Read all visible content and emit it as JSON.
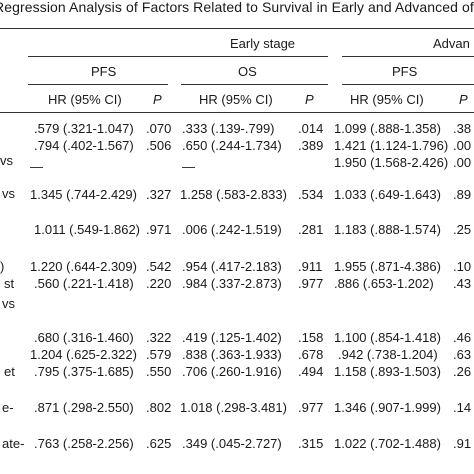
{
  "caption": "Regression Analysis of Factors Related to Survival in Early and Advanced of all EO",
  "headers": {
    "early_stage": "Early stage",
    "advanced": "Advan",
    "pfs": "PFS",
    "os": "OS",
    "pfs2": "PFS",
    "hr": "HR (95% CI)",
    "p": "P"
  },
  "rows": [
    {
      "label": "",
      "hr1": ".579 (.321-1.047)",
      "p1": ".070",
      "hr2": ".333 (.139-.799)",
      "p2": ".014",
      "hr3": "1.099 (.888-1.358)",
      "p3": ".38"
    },
    {
      "label": "",
      "hr1": ".794 (.402-1.567)",
      "p1": ".506",
      "hr2": ".650 (.244-1.734)",
      "p2": ".389",
      "hr3": "1.421 (1.124-1.796)",
      "p3": ".00"
    },
    {
      "label": "vs",
      "hr1": "—",
      "p1": "",
      "hr2": "—",
      "p2": "",
      "hr3": "1.950 (1.568-2.426)",
      "p3": ".00"
    },
    {
      "label": "vs",
      "hr1": "1.345 (.744-2.429)",
      "p1": ".327",
      "hr2": "1.258 (.583-2.833)",
      "p2": ".534",
      "hr3": "1.033 (.649-1.643)",
      "p3": ".89"
    },
    {
      "label": "",
      "hr1": "1.011 (.549-1.862)",
      "p1": ".971",
      "hr2": ".006 (.242-1.519)",
      "p2": ".281",
      "hr3": "1.183 (.888-1.574)",
      "p3": ".25"
    },
    {
      "label": ")",
      "hr1": "1.220 (.644-2.309)",
      "p1": ".542",
      "hr2": ".954 (.417-2.183)",
      "p2": ".911",
      "hr3": "1.955 (.871-4.386)",
      "p3": ".10"
    },
    {
      "label": "st",
      "hr1": ".560 (.221-1.418)",
      "p1": ".220",
      "hr2": ".984 (.337-2.873)",
      "p2": ".977",
      "hr3": ".886 (.653-1.202)",
      "p3": ".43"
    },
    {
      "label": "vs",
      "hr1": "",
      "p1": "",
      "hr2": "",
      "p2": "",
      "hr3": "",
      "p3": ""
    },
    {
      "label": "",
      "hr1": ".680 (.316-1.460)",
      "p1": ".322",
      "hr2": ".419 (.125-1.402)",
      "p2": ".158",
      "hr3": "1.100 (.854-1.418)",
      "p3": ".46"
    },
    {
      "label": "",
      "hr1": "1.204 (.625-2.322)",
      "p1": ".579",
      "hr2": ".838 (.363-1.933)",
      "p2": ".678",
      "hr3": ".942 (.738-1.204)",
      "p3": ".63"
    },
    {
      "label": "et",
      "hr1": ".795 (.375-1.685)",
      "p1": ".550",
      "hr2": ".706 (.260-1.916)",
      "p2": ".494",
      "hr3": "1.158 (.893-1.503)",
      "p3": ".26"
    },
    {
      "label": "e-",
      "hr1": ".871 (.298-2.550)",
      "p1": ".802",
      "hr2": "1.018 (.298-3.481)",
      "p2": ".977",
      "hr3": "1.346 (.907-1.999)",
      "p3": ".14"
    },
    {
      "label": "ate-",
      "hr1": ".763 (.258-2.256)",
      "p1": ".625",
      "hr2": ".349 (.045-2.727)",
      "p2": ".315",
      "hr3": "1.022 (.702-1.488)",
      "p3": ".91"
    }
  ]
}
